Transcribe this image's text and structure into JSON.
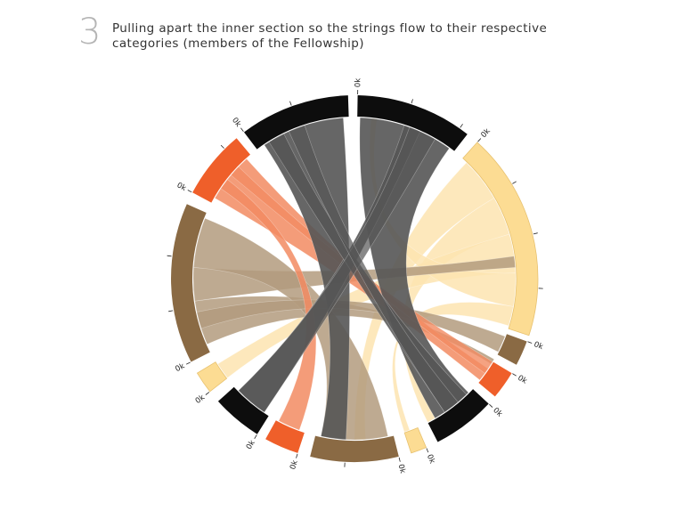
{
  "header": {
    "step_number": "3",
    "caption": "Pulling apart the inner section so the strings flow to their respective categories (members of the Fellowship)"
  },
  "chord_diagram": {
    "tick_label": "0k",
    "colors": {
      "black": "#0d0d0d",
      "black_ribbon": "#555555",
      "orange": "#ef5f2a",
      "orange_ribbon": "#f28b62",
      "yellow": "#fcdc93",
      "yellow_ribbon": "#fde4b0",
      "brown": "#8a6a44",
      "brown_ribbon": "#b39b7e"
    },
    "arcs": [
      {
        "name": "arc-top-right-black",
        "color": "black"
      },
      {
        "name": "arc-right-yellow",
        "color": "yellow"
      },
      {
        "name": "arc-right-brown-small",
        "color": "brown"
      },
      {
        "name": "arc-right-orange-small",
        "color": "orange"
      },
      {
        "name": "arc-bottom-right-black",
        "color": "black"
      },
      {
        "name": "arc-bottom-yellow-small",
        "color": "yellow"
      },
      {
        "name": "arc-bottom-brown",
        "color": "brown"
      },
      {
        "name": "arc-bottom-orange",
        "color": "orange"
      },
      {
        "name": "arc-bottom-left-black",
        "color": "black"
      },
      {
        "name": "arc-left-yellow-small",
        "color": "yellow"
      },
      {
        "name": "arc-left-brown",
        "color": "brown"
      },
      {
        "name": "arc-upper-left-orange",
        "color": "orange"
      },
      {
        "name": "arc-top-left-black",
        "color": "black"
      }
    ]
  }
}
